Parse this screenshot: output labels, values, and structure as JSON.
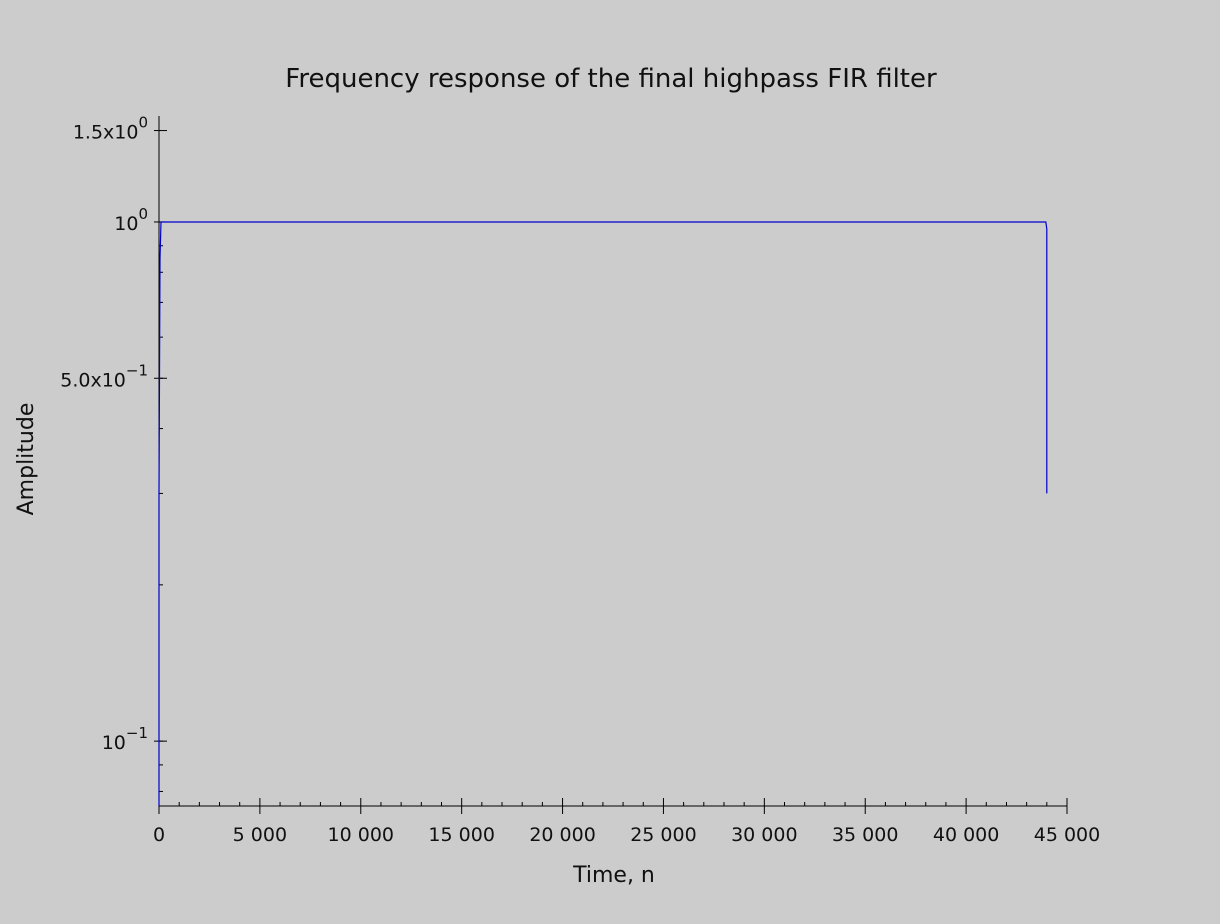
{
  "chart_data": {
    "type": "line",
    "title": "Frequency response of the final highpass FIR filter",
    "xlabel": "Time, n",
    "ylabel": "Amplitude",
    "xlim": [
      0,
      45000
    ],
    "ylim": [
      0.075,
      1.6
    ],
    "yscale": "log",
    "grid": false,
    "x_ticks": [
      {
        "value": 0,
        "label": "0"
      },
      {
        "value": 5000,
        "label": "5 000"
      },
      {
        "value": 10000,
        "label": "10 000"
      },
      {
        "value": 15000,
        "label": "15 000"
      },
      {
        "value": 20000,
        "label": "20 000"
      },
      {
        "value": 25000,
        "label": "25 000"
      },
      {
        "value": 30000,
        "label": "30 000"
      },
      {
        "value": 35000,
        "label": "35 000"
      },
      {
        "value": 40000,
        "label": "40 000"
      },
      {
        "value": 45000,
        "label": "45 000"
      }
    ],
    "y_ticks": [
      {
        "value": 1.5,
        "mantissa": "1.5x10",
        "exponent": "0"
      },
      {
        "value": 1.0,
        "mantissa": "10",
        "exponent": "0"
      },
      {
        "value": 0.5,
        "mantissa": "5.0x10",
        "exponent": "−1"
      },
      {
        "value": 0.1,
        "mantissa": "10",
        "exponent": "−1"
      }
    ],
    "series": [
      {
        "color": "#0000cc",
        "x": [
          0,
          0,
          50,
          100,
          43950,
          44000,
          44000
        ],
        "y": [
          0.075,
          0.3,
          0.85,
          1.0,
          1.0,
          0.97,
          0.3
        ]
      }
    ]
  }
}
